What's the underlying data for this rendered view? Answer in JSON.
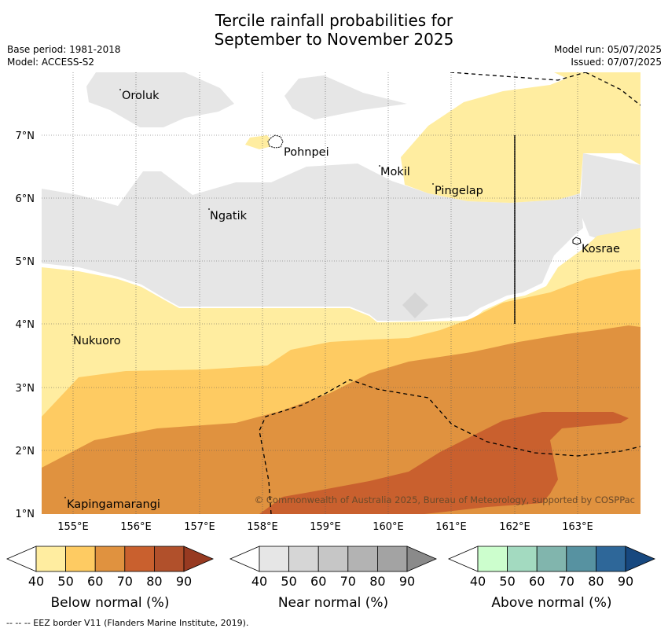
{
  "title": {
    "line1": "Tercile rainfall probabilities for",
    "line2": "September to November 2025"
  },
  "meta": {
    "base_period": "Base period: 1981-2018",
    "model": "Model: ACCESS-S2",
    "model_run": "Model run: 05/07/2025",
    "issued": "Issued: 07/07/2025"
  },
  "map": {
    "lon_ticks": [
      "155°E",
      "156°E",
      "157°E",
      "158°E",
      "159°E",
      "160°E",
      "161°E",
      "162°E",
      "163°E"
    ],
    "lat_ticks": [
      "7°N",
      "6°N",
      "5°N",
      "4°N",
      "3°N",
      "2°N",
      "1°N"
    ],
    "places": [
      "Oroluk",
      "Pohnpei",
      "Mokil",
      "Pingelap",
      "Ngatik",
      "Kosrae",
      "Nukuoro",
      "Kapingamarangi"
    ],
    "copyright": "© Commonwealth of Australia 2025, Bureau of Meteorology, supported by COSPPac"
  },
  "colorbars": [
    {
      "label": "Below normal (%)",
      "colors": [
        "#ffffff",
        "#ffeda0",
        "#fecb62",
        "#e0923f",
        "#c9602e",
        "#b1502b",
        "#973a21"
      ]
    },
    {
      "label": "Near normal (%)",
      "colors": [
        "#ffffff",
        "#e6e6e6",
        "#d6d6d6",
        "#c6c6c6",
        "#b3b3b3",
        "#a3a3a3",
        "#8a8a8a"
      ]
    },
    {
      "label": "Above normal (%)",
      "colors": [
        "#ffffff",
        "#ccfecd",
        "#a3dac0",
        "#81b5ad",
        "#5792a1",
        "#2e6799",
        "#17487f"
      ]
    }
  ],
  "colorbar_ticks": [
    "40",
    "50",
    "60",
    "70",
    "80",
    "90"
  ],
  "footnote": "--  --  -- EEZ border V11 (Flanders Marine Institute, 2019)."
}
